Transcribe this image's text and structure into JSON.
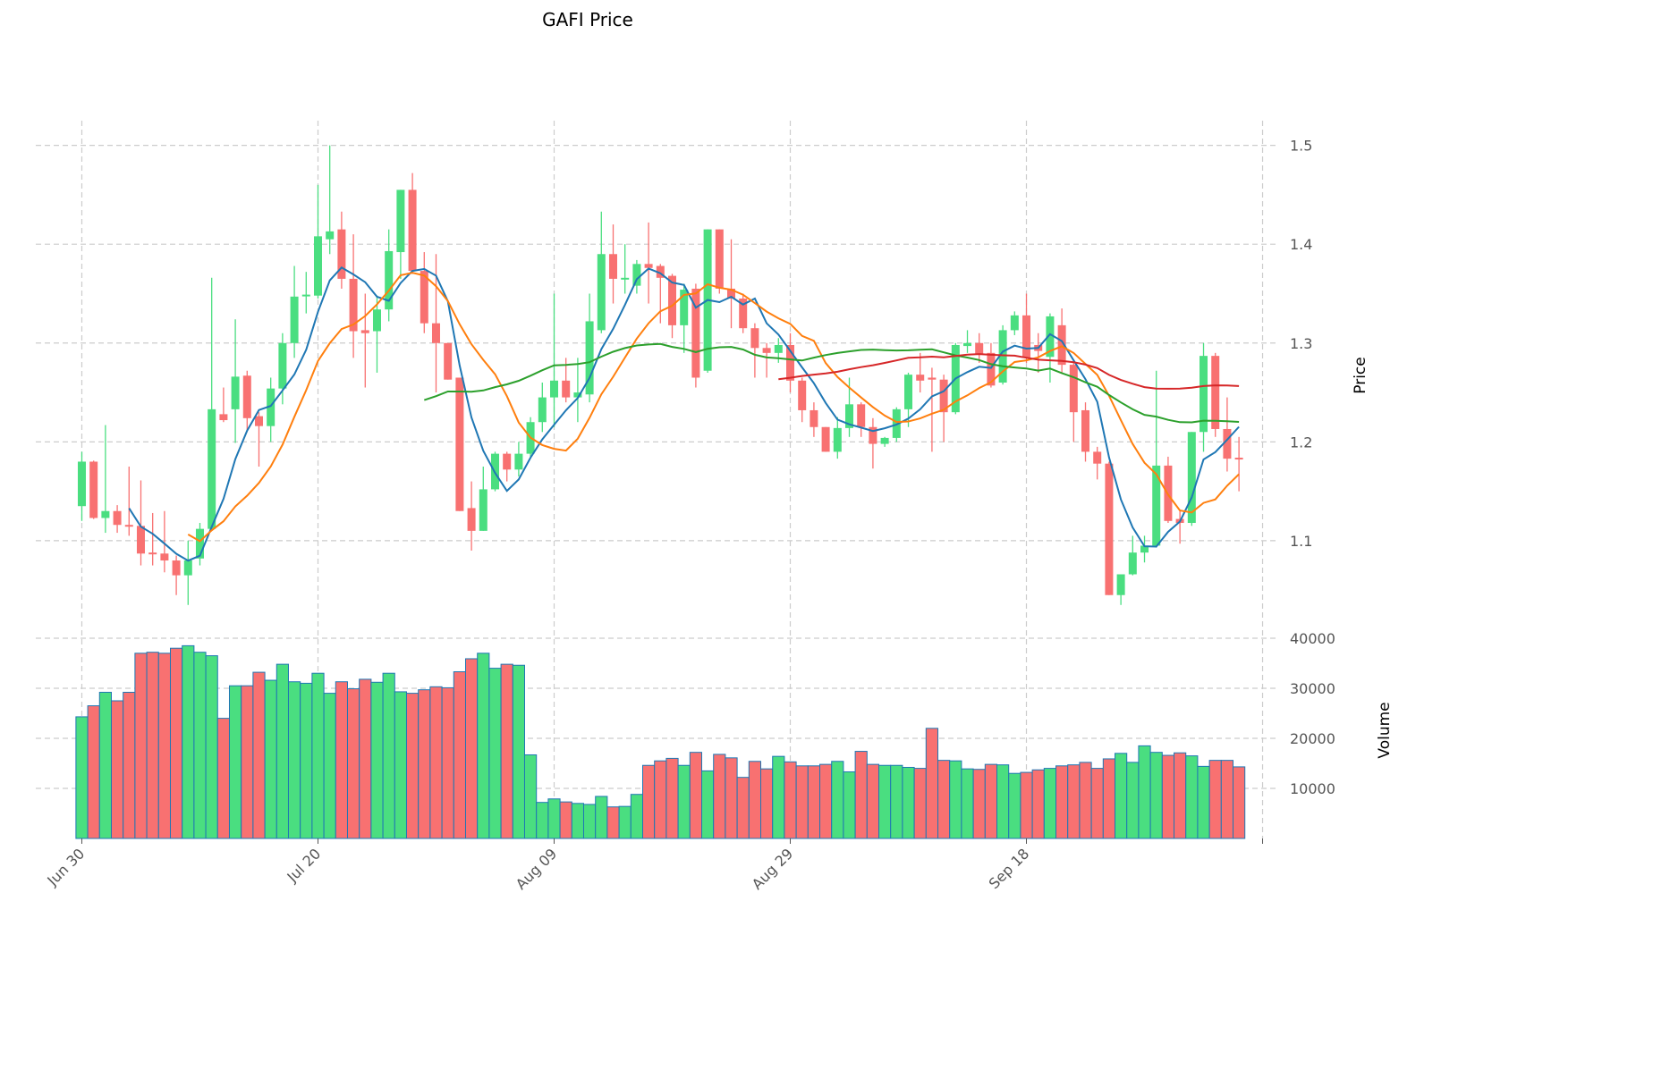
{
  "chart_data": {
    "type": "candlestick",
    "title": "GAFI Price",
    "price_ylabel": "Price",
    "volume_ylabel": "Volume",
    "price_ylim": [
      1.014,
      1.525
    ],
    "volume_ylim": [
      0,
      42500
    ],
    "price_ticks": [
      "1.1",
      "1.2",
      "1.3",
      "1.4",
      "1.5"
    ],
    "volume_ticks": [
      "10000",
      "20000",
      "30000",
      "40000"
    ],
    "x_ticks": [
      {
        "day": 0,
        "label": "Jun 30"
      },
      {
        "day": 20,
        "label": "Jul 20"
      },
      {
        "day": 40,
        "label": "Aug 09"
      },
      {
        "day": 60,
        "label": "Aug 29"
      },
      {
        "day": 80,
        "label": "Sep 18"
      },
      {
        "day": 100,
        "label": ""
      }
    ],
    "x_range_days": [
      -3.9,
      101.4
    ],
    "colors": {
      "up": "#4ade80",
      "down": "#f87171",
      "volume_edge": "#1f77b4",
      "ma5": "#1f77b4",
      "ma10": "#ff7f0e",
      "ma30": "#2ca02c",
      "ma60": "#d62728"
    },
    "moving_averages": [
      5,
      10,
      30,
      60
    ],
    "ohlc": [
      [
        1.135,
        1.19,
        1.12,
        1.18
      ],
      [
        1.18,
        1.181,
        1.122,
        1.123
      ],
      [
        1.123,
        1.217,
        1.108,
        1.13
      ],
      [
        1.13,
        1.136,
        1.108,
        1.116
      ],
      [
        1.116,
        1.175,
        1.105,
        1.115
      ],
      [
        1.115,
        1.161,
        1.075,
        1.087
      ],
      [
        1.088,
        1.128,
        1.075,
        1.087
      ],
      [
        1.087,
        1.13,
        1.068,
        1.08
      ],
      [
        1.08,
        1.085,
        1.045,
        1.065
      ],
      [
        1.065,
        1.1,
        1.035,
        1.08
      ],
      [
        1.082,
        1.118,
        1.075,
        1.112
      ],
      [
        1.112,
        1.366,
        1.11,
        1.233
      ],
      [
        1.228,
        1.255,
        1.22,
        1.222
      ],
      [
        1.233,
        1.324,
        1.199,
        1.266
      ],
      [
        1.267,
        1.272,
        1.21,
        1.224
      ],
      [
        1.226,
        1.23,
        1.175,
        1.216
      ],
      [
        1.216,
        1.265,
        1.2,
        1.254
      ],
      [
        1.254,
        1.31,
        1.238,
        1.3
      ],
      [
        1.3,
        1.378,
        1.285,
        1.347
      ],
      [
        1.348,
        1.372,
        1.33,
        1.349
      ],
      [
        1.348,
        1.46,
        1.345,
        1.408
      ],
      [
        1.405,
        1.5,
        1.39,
        1.413
      ],
      [
        1.415,
        1.433,
        1.355,
        1.365
      ],
      [
        1.365,
        1.41,
        1.285,
        1.312
      ],
      [
        1.313,
        1.35,
        1.255,
        1.31
      ],
      [
        1.312,
        1.348,
        1.27,
        1.334
      ],
      [
        1.334,
        1.415,
        1.322,
        1.393
      ],
      [
        1.392,
        1.455,
        1.365,
        1.455
      ],
      [
        1.455,
        1.472,
        1.37,
        1.373
      ],
      [
        1.373,
        1.392,
        1.31,
        1.32
      ],
      [
        1.32,
        1.39,
        1.25,
        1.3
      ],
      [
        1.3,
        1.3,
        1.263,
        1.263
      ],
      [
        1.265,
        1.265,
        1.13,
        1.13
      ],
      [
        1.133,
        1.16,
        1.09,
        1.11
      ],
      [
        1.11,
        1.175,
        1.11,
        1.152
      ],
      [
        1.152,
        1.19,
        1.15,
        1.188
      ],
      [
        1.188,
        1.19,
        1.16,
        1.172
      ],
      [
        1.172,
        1.2,
        1.165,
        1.188
      ],
      [
        1.188,
        1.225,
        1.185,
        1.22
      ],
      [
        1.22,
        1.26,
        1.21,
        1.245
      ],
      [
        1.245,
        1.35,
        1.215,
        1.262
      ],
      [
        1.262,
        1.285,
        1.24,
        1.245
      ],
      [
        1.245,
        1.285,
        1.22,
        1.25
      ],
      [
        1.248,
        1.35,
        1.24,
        1.322
      ],
      [
        1.313,
        1.433,
        1.31,
        1.39
      ],
      [
        1.39,
        1.42,
        1.34,
        1.365
      ],
      [
        1.365,
        1.4,
        1.35,
        1.366
      ],
      [
        1.358,
        1.384,
        1.35,
        1.38
      ],
      [
        1.38,
        1.422,
        1.34,
        1.376
      ],
      [
        1.378,
        1.38,
        1.32,
        1.366
      ],
      [
        1.368,
        1.37,
        1.305,
        1.318
      ],
      [
        1.318,
        1.36,
        1.29,
        1.354
      ],
      [
        1.355,
        1.36,
        1.255,
        1.265
      ],
      [
        1.272,
        1.415,
        1.27,
        1.415
      ],
      [
        1.415,
        1.415,
        1.35,
        1.355
      ],
      [
        1.355,
        1.405,
        1.315,
        1.345
      ],
      [
        1.345,
        1.35,
        1.31,
        1.315
      ],
      [
        1.315,
        1.32,
        1.265,
        1.295
      ],
      [
        1.295,
        1.3,
        1.265,
        1.29
      ],
      [
        1.29,
        1.305,
        1.28,
        1.298
      ],
      [
        1.298,
        1.31,
        1.25,
        1.262
      ],
      [
        1.262,
        1.265,
        1.22,
        1.232
      ],
      [
        1.232,
        1.24,
        1.205,
        1.215
      ],
      [
        1.215,
        1.215,
        1.19,
        1.19
      ],
      [
        1.19,
        1.225,
        1.183,
        1.214
      ],
      [
        1.214,
        1.265,
        1.205,
        1.238
      ],
      [
        1.238,
        1.24,
        1.205,
        1.215
      ],
      [
        1.215,
        1.224,
        1.173,
        1.198
      ],
      [
        1.198,
        1.205,
        1.195,
        1.204
      ],
      [
        1.204,
        1.235,
        1.2,
        1.233
      ],
      [
        1.233,
        1.27,
        1.215,
        1.268
      ],
      [
        1.268,
        1.29,
        1.25,
        1.262
      ],
      [
        1.265,
        1.275,
        1.19,
        1.263
      ],
      [
        1.263,
        1.268,
        1.2,
        1.23
      ],
      [
        1.23,
        1.3,
        1.228,
        1.298
      ],
      [
        1.297,
        1.313,
        1.29,
        1.3
      ],
      [
        1.3,
        1.31,
        1.28,
        1.289
      ],
      [
        1.29,
        1.3,
        1.255,
        1.257
      ],
      [
        1.26,
        1.318,
        1.258,
        1.313
      ],
      [
        1.313,
        1.332,
        1.308,
        1.328
      ],
      [
        1.328,
        1.35,
        1.28,
        1.285
      ],
      [
        1.298,
        1.31,
        1.27,
        1.292
      ],
      [
        1.286,
        1.33,
        1.26,
        1.327
      ],
      [
        1.318,
        1.335,
        1.27,
        1.278
      ],
      [
        1.278,
        1.28,
        1.2,
        1.23
      ],
      [
        1.232,
        1.24,
        1.18,
        1.19
      ],
      [
        1.19,
        1.195,
        1.162,
        1.178
      ],
      [
        1.178,
        1.18,
        1.045,
        1.045
      ],
      [
        1.045,
        1.066,
        1.035,
        1.066
      ],
      [
        1.066,
        1.105,
        1.065,
        1.088
      ],
      [
        1.088,
        1.105,
        1.078,
        1.095
      ],
      [
        1.095,
        1.272,
        1.093,
        1.176
      ],
      [
        1.176,
        1.185,
        1.118,
        1.12
      ],
      [
        1.122,
        1.13,
        1.097,
        1.118
      ],
      [
        1.118,
        1.21,
        1.115,
        1.21
      ],
      [
        1.21,
        1.3,
        1.19,
        1.287
      ],
      [
        1.287,
        1.29,
        1.205,
        1.213
      ],
      [
        1.213,
        1.245,
        1.17,
        1.183
      ],
      [
        1.184,
        1.205,
        1.15,
        1.183
      ]
    ],
    "volume": [
      24300,
      26500,
      29200,
      27500,
      29200,
      37000,
      37200,
      37000,
      38000,
      38500,
      37200,
      36500,
      24000,
      30500,
      30500,
      33200,
      31600,
      34800,
      31300,
      31000,
      33000,
      29000,
      31300,
      29900,
      31800,
      31200,
      33000,
      29300,
      29000,
      29700,
      30300,
      30100,
      33300,
      35900,
      37000,
      34000,
      34800,
      34600,
      16700,
      7200,
      7900,
      7300,
      7000,
      6800,
      8400,
      6300,
      6400,
      8800,
      14600,
      15500,
      16000,
      14600,
      17200,
      13500,
      16800,
      16100,
      12200,
      15400,
      13900,
      16400,
      15300,
      14500,
      14500,
      14800,
      15400,
      13300,
      17400,
      14800,
      14600,
      14600,
      14200,
      14000,
      22000,
      15600,
      15500,
      13900,
      13800,
      14800,
      14700,
      13000,
      13200,
      13700,
      14000,
      14500,
      14700,
      15200,
      14000,
      15900,
      17000,
      15200,
      18500,
      17200,
      16600,
      17100,
      16500,
      14400,
      15600,
      15600,
      14300
    ]
  }
}
